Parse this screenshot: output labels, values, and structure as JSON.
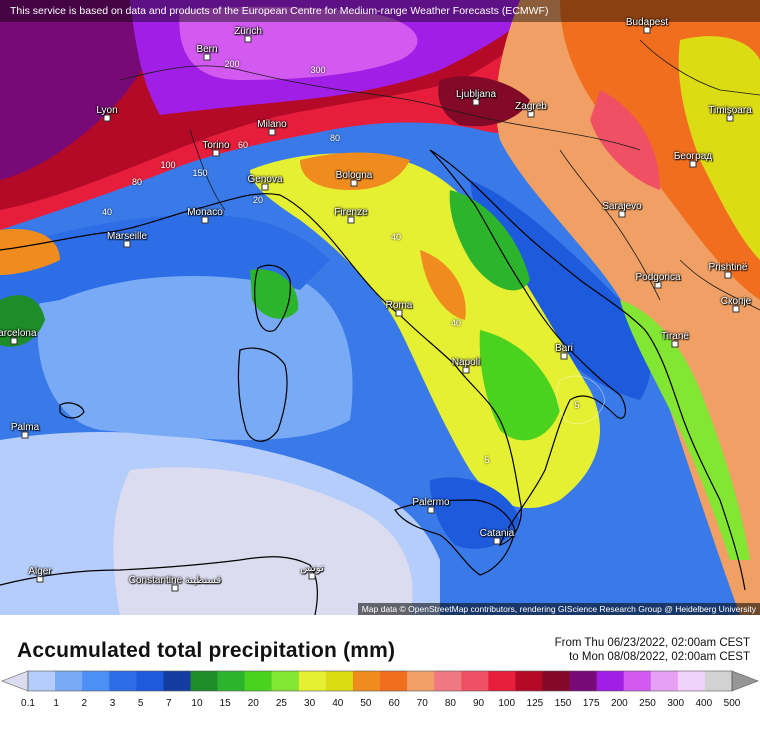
{
  "notice": "This service is based on data and products of the European Centre for Medium-range Weather Forecasts (ECMWF)",
  "attribution": "Map data © OpenStreetMap contributors, rendering GIScience Research Group @ Heidelberg University",
  "title": "Accumulated total precipitation (mm)",
  "period": {
    "from": "From Thu 06/23/2022, 02:00am CEST",
    "to": "to Mon 08/08/2022, 02:00am CEST"
  },
  "cities": [
    "Zürich",
    "Bern",
    "Budapest",
    "Lyon",
    "Ljubljana",
    "Zagreb",
    "Timişoara",
    "Torino",
    "Milano",
    "Београд",
    "Genova",
    "Bologna",
    "Monaco",
    "Sarajevo",
    "Firenze",
    "Marseille",
    "Prishtinë",
    "Podgorica",
    "Скопје",
    "Roma",
    "Tiranë",
    "Barcelona",
    "Bari",
    "Napoli",
    "Palma",
    "Palermo",
    "Catania",
    "Alger",
    "Constantine\nقسنطينة",
    "تونس"
  ],
  "contour_labels": [
    "300",
    "200",
    "80",
    "60",
    "100",
    "150",
    "80",
    "40",
    "20",
    "40",
    "40",
    "5",
    "5"
  ],
  "legend": {
    "units": "mm",
    "ticks": [
      "0.1",
      "1",
      "2",
      "3",
      "5",
      "7",
      "10",
      "15",
      "20",
      "25",
      "30",
      "40",
      "50",
      "60",
      "70",
      "80",
      "90",
      "100",
      "125",
      "150",
      "175",
      "200",
      "250",
      "300",
      "400",
      "500"
    ],
    "colors": [
      "#dcdcf0",
      "#b4cdfa",
      "#78aaf5",
      "#4b91f5",
      "#2d6ee6",
      "#1e5adc",
      "#143ca0",
      "#1e8c28",
      "#2db42d",
      "#4bd21e",
      "#82e632",
      "#e6f032",
      "#dcdc14",
      "#f08c1e",
      "#f06e1e",
      "#f0a064",
      "#f07882",
      "#f05064",
      "#e61e3c",
      "#b40a28",
      "#820a28",
      "#780a78",
      "#a01ee6",
      "#d25af0",
      "#e6a0f5",
      "#f0d2fa",
      "#d2d2d2",
      "#969696"
    ]
  }
}
